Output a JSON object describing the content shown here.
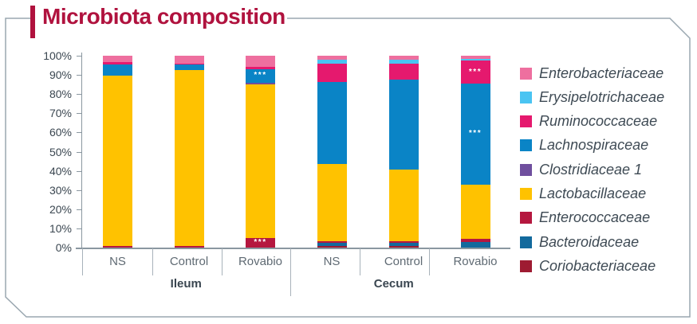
{
  "title": "Microbiota composition",
  "legend": {
    "items": [
      {
        "label": "Enterobacteriaceae",
        "color": "#EE6F9F"
      },
      {
        "label": "Erysipelotrichaceae",
        "color": "#4AC4F2"
      },
      {
        "label": "Ruminococcaceae",
        "color": "#E5196E"
      },
      {
        "label": "Lachnospiraceae",
        "color": "#0A84C6"
      },
      {
        "label": "Clostridiaceae 1",
        "color": "#6F4F9E"
      },
      {
        "label": "Lactobacillaceae",
        "color": "#FFC200"
      },
      {
        "label": "Enterococcaceae",
        "color": "#B5173F"
      },
      {
        "label": "Bacteroidaceae",
        "color": "#136A9D"
      },
      {
        "label": "Coriobacteriaceae",
        "color": "#9E1B32"
      }
    ]
  },
  "chart_data": {
    "type": "bar",
    "subtype": "stacked-percentage",
    "title": "Microbiota composition",
    "xlabel": "",
    "ylabel": "",
    "grid": false,
    "legend_position": "right",
    "y_axis": {
      "min": 0,
      "max": 100,
      "step": 10,
      "tick_labels": [
        "100%",
        "90%",
        "80%",
        "70%",
        "60%",
        "50%",
        "40%",
        "30%",
        "20%",
        "10%",
        "0%"
      ]
    },
    "groups": [
      {
        "label": "Ileum",
        "categories": [
          "NS",
          "Control",
          "Rovabio"
        ]
      },
      {
        "label": "Cecum",
        "categories": [
          "NS",
          "Control",
          "Rovabio"
        ]
      }
    ],
    "bar_order": [
      "Ileum-NS",
      "Ileum-Control",
      "Ileum-Rovabio",
      "Cecum-NS",
      "Cecum-Control",
      "Cecum-Rovabio"
    ],
    "stack_note": "series listed bottom-to-top; values are percent of community per bar",
    "series": [
      {
        "name": "Coriobacteriaceae",
        "color": "#9E1B32",
        "values": [
          0,
          0,
          0,
          1,
          1,
          0
        ]
      },
      {
        "name": "Bacteroidaceae",
        "color": "#136A9D",
        "values": [
          0,
          0,
          0,
          1.5,
          1.5,
          3
        ]
      },
      {
        "name": "Enterococcaceae",
        "color": "#B5173F",
        "values": [
          1,
          1,
          5,
          1,
          1,
          1.5
        ]
      },
      {
        "name": "Lactobacillaceae",
        "color": "#FFC200",
        "values": [
          88.5,
          91.5,
          80,
          40,
          37,
          28.5
        ]
      },
      {
        "name": "Clostridiaceae 1",
        "color": "#6F4F9E",
        "values": [
          0,
          0,
          1,
          0,
          0,
          0
        ]
      },
      {
        "name": "Lachnospiraceae",
        "color": "#0A84C6",
        "values": [
          6,
          3,
          7,
          43,
          47,
          52.5
        ]
      },
      {
        "name": "Ruminococcaceae",
        "color": "#E5196E",
        "values": [
          1,
          0.5,
          1,
          9.5,
          8.5,
          12
        ]
      },
      {
        "name": "Erysipelotrichaceae",
        "color": "#4AC4F2",
        "values": [
          0,
          0,
          0,
          2,
          2,
          1
        ]
      },
      {
        "name": "Enterobacteriaceae",
        "color": "#EE6F9F",
        "values": [
          3.5,
          4,
          6,
          2,
          2,
          1.5
        ]
      }
    ],
    "annotations": [
      {
        "group": "Ileum",
        "category": "Rovabio",
        "series": "Lachnospiraceae",
        "text": "***"
      },
      {
        "group": "Ileum",
        "category": "Rovabio",
        "series": "Enterococcaceae",
        "text": "***"
      },
      {
        "group": "Cecum",
        "category": "Rovabio",
        "series": "Ruminococcaceae",
        "text": "***"
      },
      {
        "group": "Cecum",
        "category": "Rovabio",
        "series": "Lachnospiraceae",
        "text": "***"
      }
    ]
  },
  "colors": {
    "title": "#B0123E",
    "frame": "#9AA7B0",
    "axis": "#8A97A0",
    "axis_text": "#3A4650",
    "category_text": "#5F6A73",
    "annotation_text": "#FFFFFF"
  }
}
